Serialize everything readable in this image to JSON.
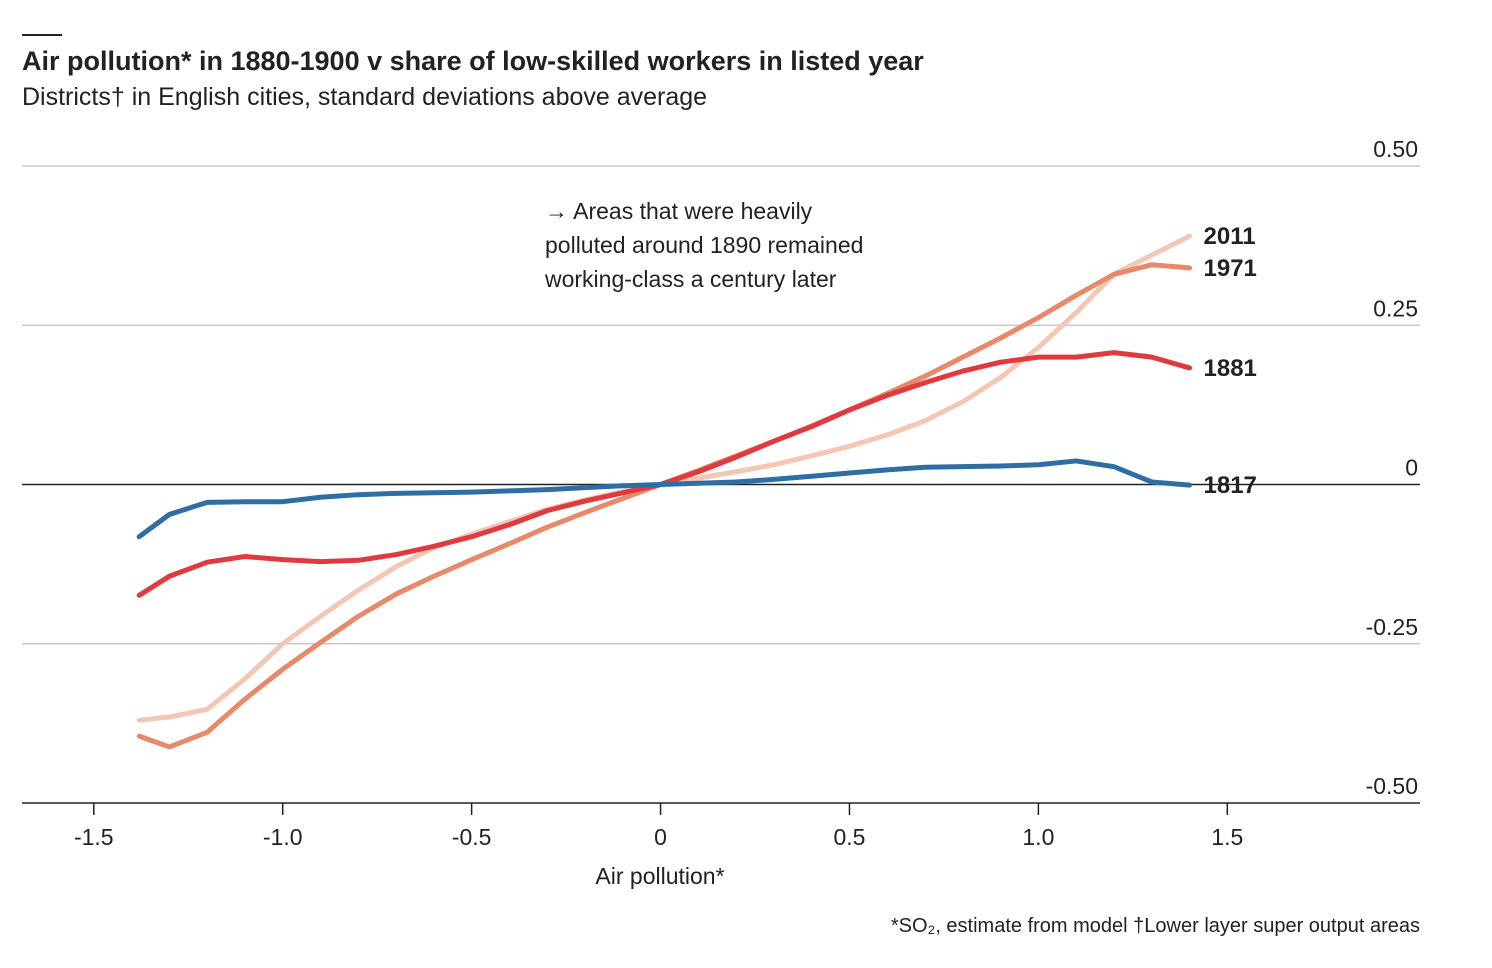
{
  "chart_data": {
    "type": "line",
    "title": "Air pollution* in 1880-1900 v share of low-skilled workers in listed year",
    "subtitle": "Districts† in English cities, standard deviations above average",
    "annotation": [
      "→ Areas that were heavily",
      "polluted around 1890 remained",
      "working-class a century later"
    ],
    "x_label": "Air pollution*",
    "footnote": "*SO₂, estimate from model †Lower layer super output areas",
    "x": [
      -1.38,
      -1.3,
      -1.2,
      -1.1,
      -1.0,
      -0.9,
      -0.8,
      -0.7,
      -0.6,
      -0.5,
      -0.4,
      -0.3,
      -0.2,
      -0.1,
      0,
      0.1,
      0.2,
      0.3,
      0.4,
      0.5,
      0.6,
      0.7,
      0.8,
      0.9,
      1.0,
      1.1,
      1.2,
      1.3,
      1.4
    ],
    "series": [
      {
        "name": "2011",
        "color": "#f4c6b4",
        "label_color": "#ec9a8c",
        "values": [
          -0.37,
          -0.365,
          -0.353,
          -0.305,
          -0.25,
          -0.207,
          -0.166,
          -0.129,
          -0.099,
          -0.078,
          -0.058,
          -0.039,
          -0.024,
          -0.011,
          0,
          0.01,
          0.02,
          0.031,
          0.045,
          0.06,
          0.078,
          0.1,
          0.13,
          0.168,
          0.215,
          0.27,
          0.33,
          0.36,
          0.39
        ]
      },
      {
        "name": "1971",
        "color": "#e8896a",
        "label_color": "#e0604e",
        "values": [
          -0.395,
          -0.412,
          -0.389,
          -0.337,
          -0.29,
          -0.248,
          -0.207,
          -0.172,
          -0.144,
          -0.118,
          -0.093,
          -0.067,
          -0.044,
          -0.022,
          0,
          0.022,
          0.045,
          0.068,
          0.092,
          0.117,
          0.143,
          0.17,
          0.2,
          0.23,
          0.262,
          0.297,
          0.33,
          0.345,
          0.34
        ]
      },
      {
        "name": "1881",
        "color": "#e03a3e",
        "label_color": "#e03a3e",
        "values": [
          -0.174,
          -0.144,
          -0.122,
          -0.113,
          -0.118,
          -0.121,
          -0.119,
          -0.11,
          -0.097,
          -0.082,
          -0.063,
          -0.041,
          -0.026,
          -0.013,
          0,
          0.02,
          0.043,
          0.068,
          0.091,
          0.117,
          0.14,
          0.16,
          0.178,
          0.192,
          0.2,
          0.2,
          0.207,
          0.2,
          0.183
        ]
      },
      {
        "name": "1817",
        "color": "#2e6ea5",
        "label_color": "#2e6ea5",
        "values": [
          -0.082,
          -0.047,
          -0.028,
          -0.027,
          -0.027,
          -0.02,
          -0.016,
          -0.014,
          -0.013,
          -0.012,
          -0.01,
          -0.008,
          -0.005,
          -0.002,
          0,
          0.002,
          0.004,
          0.008,
          0.013,
          0.018,
          0.023,
          0.027,
          0.028,
          0.029,
          0.031,
          0.037,
          0.028,
          0.004,
          -0.001
        ]
      }
    ],
    "xlim": [
      -1.69,
      2.01
    ],
    "ylim": [
      -0.5,
      0.5
    ],
    "xticks": [
      -1.5,
      {
        "value": -1,
        "label": "-1.0"
      },
      -0.5,
      0,
      0.5,
      {
        "value": 1,
        "label": "1.0"
      },
      1.5
    ],
    "yticks": [
      {
        "value": -0.5,
        "label": "-0.50"
      },
      -0.25,
      0,
      0.25,
      {
        "value": 0.5,
        "label": "0.50"
      }
    ],
    "grid": true
  }
}
